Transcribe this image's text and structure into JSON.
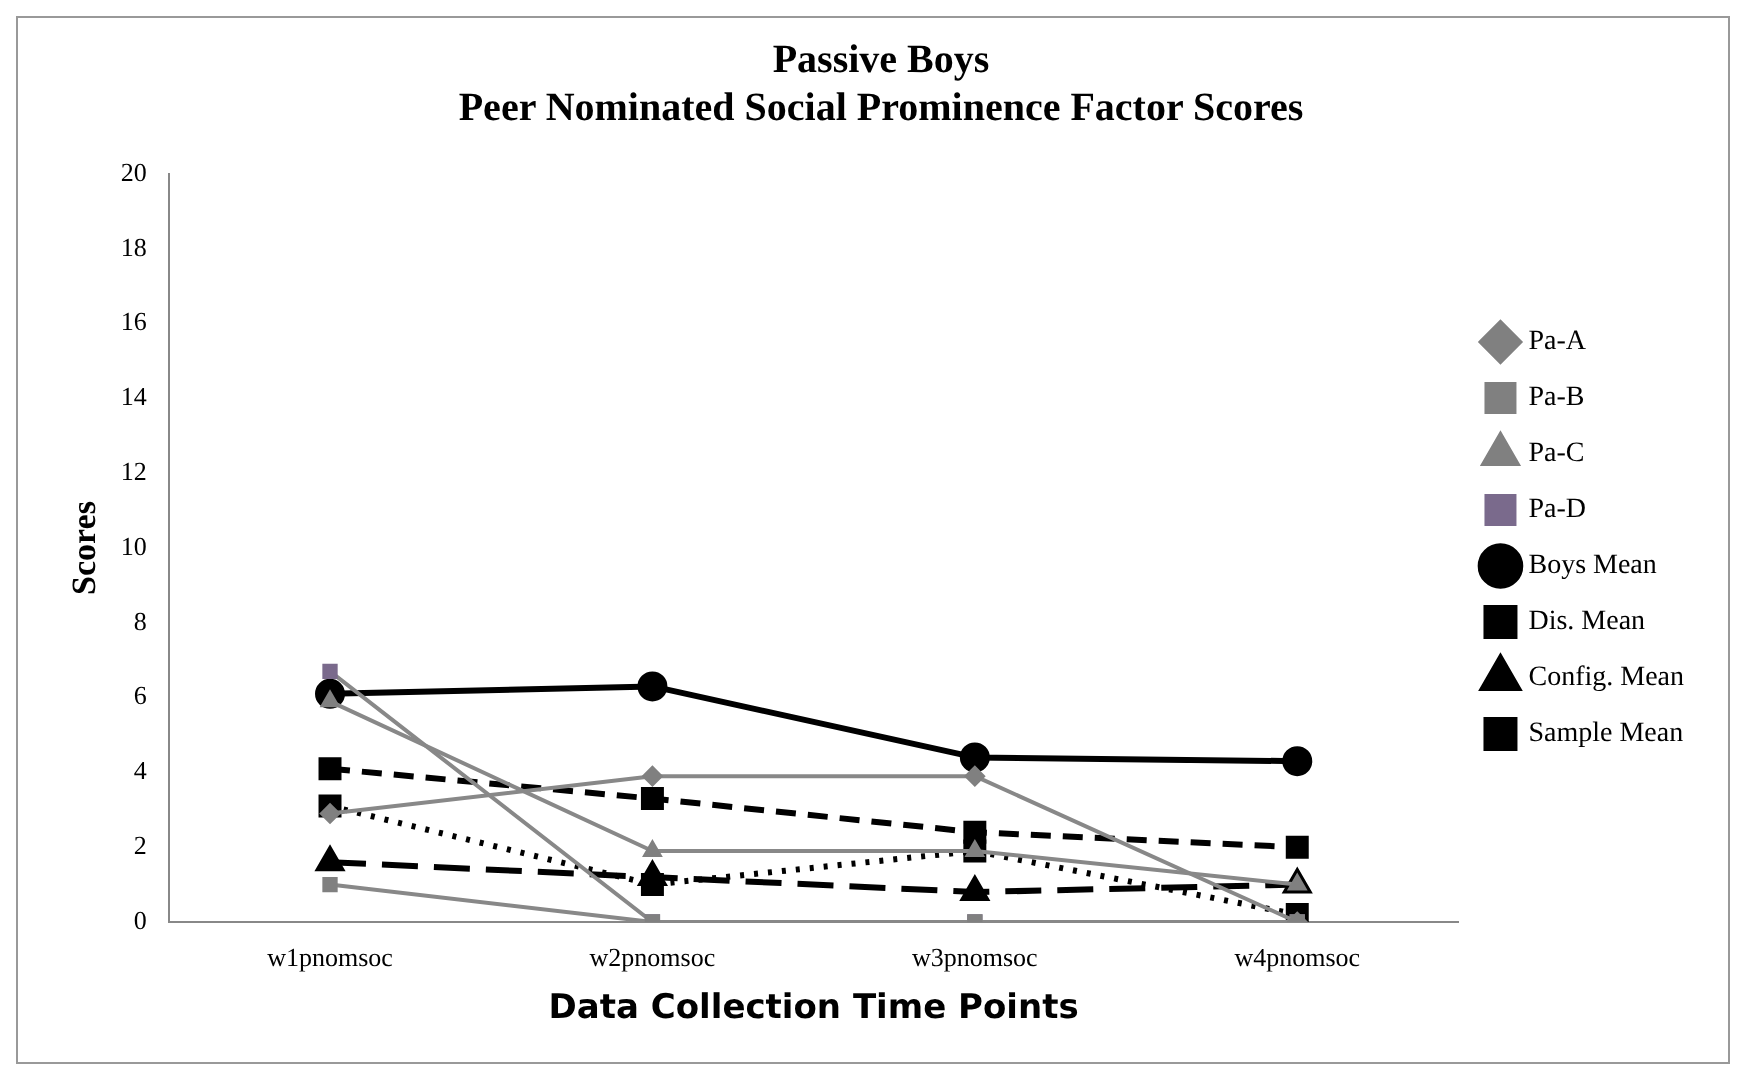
{
  "chart_data": {
    "type": "line",
    "title": "Passive Boys\nPeer Nominated Social Prominence Factor Scores",
    "xlabel": "Data Collection Time Points",
    "ylabel": "Scores",
    "categories": [
      "w1pnomsoc",
      "w2pnomsoc",
      "w3pnomsoc",
      "w4pnomsoc"
    ],
    "ylim": [
      0,
      20
    ],
    "yticks": [
      0,
      2,
      4,
      6,
      8,
      10,
      12,
      14,
      16,
      18,
      20
    ],
    "legend": "right",
    "grid": false,
    "series": [
      {
        "name": "Pa-A",
        "color": "#808080",
        "marker": "diamond",
        "line_style": "solid",
        "values": [
          2.9,
          3.9,
          3.9,
          0
        ]
      },
      {
        "name": "Pa-B",
        "color": "#808080",
        "marker": "square",
        "line_style": "solid",
        "values": [
          1.0,
          0,
          0,
          0
        ]
      },
      {
        "name": "Pa-C",
        "color": "#808080",
        "marker": "triangle",
        "line_style": "solid",
        "values": [
          5.9,
          1.9,
          1.9,
          1.0
        ]
      },
      {
        "name": "Pa-D",
        "color": "#7a6a8c",
        "marker": "square",
        "line_style": "solid",
        "values": [
          6.7,
          0,
          0,
          0
        ]
      },
      {
        "name": "Boys Mean",
        "color": "#000000",
        "marker": "circle",
        "line_style": "solid",
        "values": [
          6.1,
          6.3,
          4.4,
          4.3
        ]
      },
      {
        "name": "Dis. Mean",
        "color": "#000000",
        "marker": "square",
        "line_style": "dashed",
        "values": [
          4.1,
          3.3,
          2.4,
          2.0
        ]
      },
      {
        "name": "Config. Mean",
        "color": "#000000",
        "marker": "triangle",
        "line_style": "longdash",
        "values": [
          1.6,
          1.2,
          0.8,
          1.0
        ]
      },
      {
        "name": "Sample Mean",
        "color": "#000000",
        "marker": "square",
        "line_style": "dotted",
        "values": [
          3.1,
          1.0,
          1.9,
          0.2
        ]
      }
    ]
  }
}
